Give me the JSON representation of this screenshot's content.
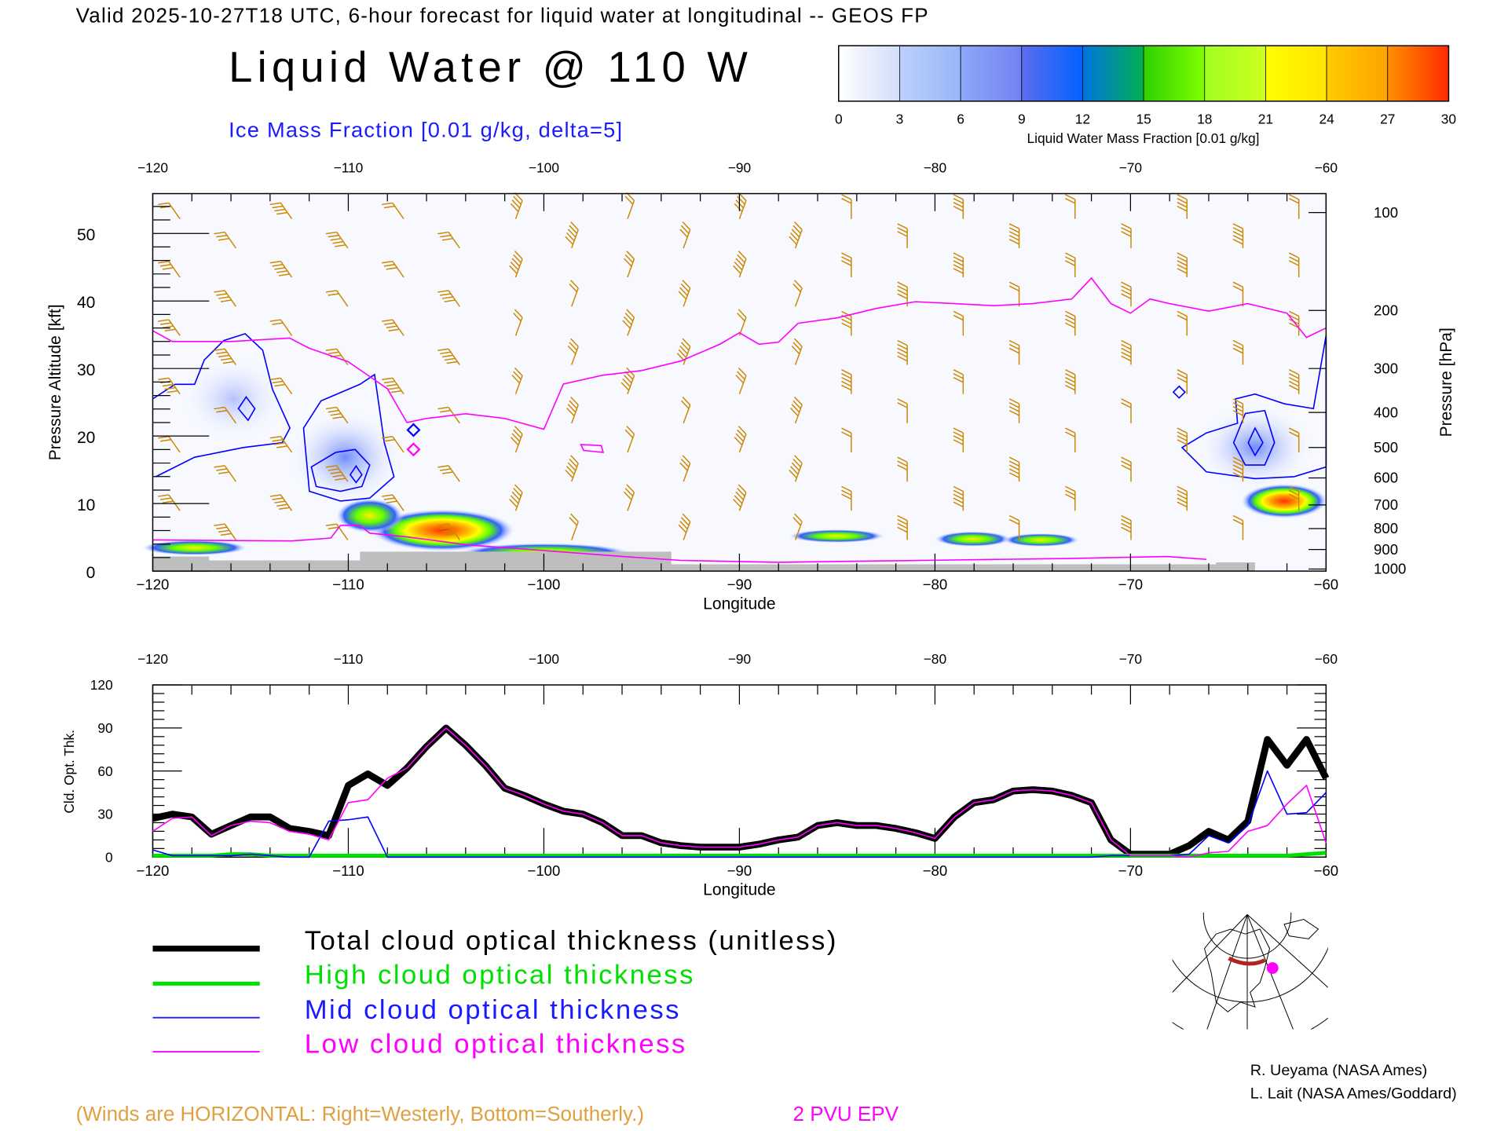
{
  "header": {
    "title": "Valid 2025-10-27T18 UTC, 6-hour forecast for liquid water at longitudinal -- GEOS FP",
    "main_title": "Liquid Water @ 110 W",
    "subtitle": "Ice Mass Fraction [0.01 g/kg, delta=5]"
  },
  "colorbar": {
    "ticks": [
      "0",
      "3",
      "6",
      "9",
      "12",
      "15",
      "18",
      "21",
      "24",
      "27",
      "30"
    ],
    "label": "Liquid Water Mass Fraction [0.01 g/kg]",
    "colors": [
      [
        "#ffffff",
        "#d2ddfa"
      ],
      [
        "#bcd0fa",
        "#98b6f8"
      ],
      [
        "#8ea8f8",
        "#7282f2"
      ],
      [
        "#5c6cf0",
        "#0062ff"
      ],
      [
        "#0074e0",
        "#00b050"
      ],
      [
        "#30d000",
        "#80ff00"
      ],
      [
        "#a0ff20",
        "#ccff20"
      ],
      [
        "#ffff00",
        "#ffe400"
      ],
      [
        "#ffcc00",
        "#ffa200"
      ],
      [
        "#ff9000",
        "#ff2a00"
      ]
    ]
  },
  "chart_data": [
    {
      "type": "line",
      "title": "Liquid Water @ 110 W",
      "xlabel": "Longitude",
      "ylabel": "Pressure Altitude [kft]",
      "ylabel_right": "Pressure [hPa]",
      "xlim": [
        -120,
        -60
      ],
      "ylim": [
        0,
        55
      ],
      "x_ticks": [
        "-120",
        "-110",
        "-100",
        "-90",
        "-80",
        "-70",
        "-60"
      ],
      "y_ticks": [
        "0",
        "10",
        "20",
        "30",
        "40",
        "50"
      ],
      "pressure_ticks": [
        "100",
        "200",
        "300",
        "400",
        "500",
        "600",
        "700",
        "800",
        "900",
        "1000"
      ],
      "pressure_alt_kft": [
        53.1,
        38.6,
        30.0,
        23.5,
        18.3,
        13.8,
        9.8,
        6.3,
        3.2,
        0.3
      ],
      "series": [
        {
          "name": "2 PVU EPV",
          "color": "#ff00ff",
          "x": [
            -120,
            -119,
            -116,
            -113,
            -112,
            -110,
            -109,
            -108,
            -107,
            -106,
            -104,
            -102,
            -100,
            -99,
            -97,
            -95,
            -93,
            -91,
            -90,
            -89,
            -88,
            -87,
            -85,
            -83,
            -81,
            -79,
            -77,
            -75,
            -73,
            -72,
            -71,
            -70,
            -69,
            -68,
            -66,
            -64,
            -62,
            -61,
            -60
          ],
          "y": [
            35.6,
            34,
            34,
            34.5,
            33,
            31,
            29,
            27,
            22,
            22.6,
            23.3,
            22.6,
            21,
            27.7,
            29,
            29.7,
            31.1,
            33.6,
            35.3,
            33.6,
            33.9,
            36.7,
            37.5,
            38.9,
            39.9,
            39.6,
            39.3,
            39.6,
            40.3,
            43.4,
            39.6,
            38.2,
            40.3,
            39.6,
            38.5,
            39.6,
            38.2,
            34.6,
            36
          ]
        }
      ]
    },
    {
      "type": "line",
      "xlabel": "Longitude",
      "ylabel": "Cld. Opt. Thk.",
      "xlim": [
        -120,
        -60
      ],
      "ylim": [
        0,
        120
      ],
      "x_ticks": [
        "-120",
        "-110",
        "-100",
        "-90",
        "-80",
        "-70",
        "-60"
      ],
      "y_ticks": [
        "0",
        "30",
        "60",
        "90",
        "120"
      ],
      "x": [
        -120,
        -119,
        -118,
        -117,
        -116,
        -115,
        -114,
        -113,
        -112,
        -111,
        -110,
        -109,
        -108,
        -107,
        -106,
        -105,
        -104,
        -103,
        -102,
        -101,
        -100,
        -99,
        -98,
        -97,
        -96,
        -95,
        -94,
        -93,
        -92,
        -91,
        -90,
        -89,
        -88,
        -87,
        -86,
        -85,
        -84,
        -83,
        -82,
        -81,
        -80,
        -79,
        -78,
        -77,
        -76,
        -75,
        -74,
        -73,
        -72,
        -71,
        -70,
        -69,
        -68,
        -67,
        -66,
        -65,
        -64,
        -63,
        -62,
        -61,
        -60
      ],
      "series": [
        {
          "name": "Total cloud optical thickness (unitless)",
          "color": "#000000",
          "values": [
            27,
            30,
            28,
            16,
            22,
            28,
            28,
            20,
            18,
            15,
            50,
            58,
            50,
            62,
            77,
            90,
            78,
            64,
            48,
            43,
            37,
            32,
            30,
            24,
            15,
            15,
            10,
            8,
            7,
            7,
            7,
            9,
            12,
            14,
            22,
            24,
            22,
            22,
            20,
            17,
            13,
            28,
            38,
            40,
            46,
            47,
            46,
            43,
            38,
            12,
            2,
            2,
            2,
            8,
            18,
            12,
            25,
            82,
            64,
            82,
            55
          ]
        },
        {
          "name": "High cloud optical thickness",
          "color": "#00e000",
          "values": [
            1,
            1,
            1,
            1,
            2,
            2,
            1,
            1,
            1,
            1,
            1,
            1,
            1,
            1,
            1,
            1,
            1,
            1,
            1,
            1,
            1,
            1,
            1,
            1,
            1,
            1,
            1,
            1,
            1,
            1,
            1,
            1,
            1,
            1,
            1,
            1,
            1,
            1,
            1,
            1,
            1,
            1,
            1,
            1,
            1,
            1,
            1,
            1,
            1,
            1,
            1,
            1,
            1,
            1,
            1,
            1,
            1,
            1,
            1,
            2,
            3
          ]
        },
        {
          "name": "Mid cloud optical thickness",
          "color": "#0000ff",
          "values": [
            5,
            1,
            1,
            1,
            1,
            2,
            1,
            0,
            0,
            25,
            26,
            28,
            0,
            0,
            0,
            0,
            0,
            0,
            0,
            0,
            0,
            0,
            0,
            0,
            0,
            0,
            0,
            0,
            0,
            0,
            0,
            0,
            0,
            0,
            0,
            0,
            0,
            0,
            0,
            0,
            0,
            0,
            0,
            0,
            0,
            0,
            0,
            0,
            0,
            1,
            1,
            1,
            1,
            2,
            15,
            10,
            22,
            60,
            30,
            31,
            45
          ]
        },
        {
          "name": "Low cloud optical thickness",
          "color": "#ff00ff",
          "values": [
            18,
            27,
            28,
            15,
            22,
            25,
            24,
            18,
            16,
            12,
            38,
            40,
            55,
            62,
            77,
            90,
            78,
            64,
            48,
            43,
            37,
            32,
            30,
            24,
            15,
            15,
            10,
            8,
            7,
            7,
            7,
            9,
            12,
            14,
            22,
            24,
            22,
            22,
            20,
            17,
            13,
            28,
            38,
            40,
            46,
            47,
            46,
            43,
            38,
            12,
            1,
            1,
            1,
            0,
            3,
            4,
            18,
            22,
            37,
            50,
            10
          ]
        }
      ]
    }
  ],
  "lower_xlabel": "Longitude",
  "legend": [
    {
      "label": "Total cloud optical thickness (unitless)",
      "color": "#000000"
    },
    {
      "label": "High cloud optical thickness",
      "color": "#00e000"
    },
    {
      "label": "Mid cloud optical thickness",
      "color": "#1a1aff"
    },
    {
      "label": "Low cloud optical thickness",
      "color": "#ff00ff"
    }
  ],
  "footer": {
    "winds_note": "(Winds are HORIZONTAL: Right=Westerly, Bottom=Southerly.)",
    "epv_label": "2 PVU EPV",
    "credit1": "R. Ueyama (NASA Ames)",
    "credit2": "L. Lait (NASA Ames/Goddard)"
  },
  "colors": {
    "barb": "#cc8800",
    "ice": "#0000ff",
    "epv": "#ff00ff",
    "terrain": "#bebebe",
    "note": "#e0a040"
  }
}
